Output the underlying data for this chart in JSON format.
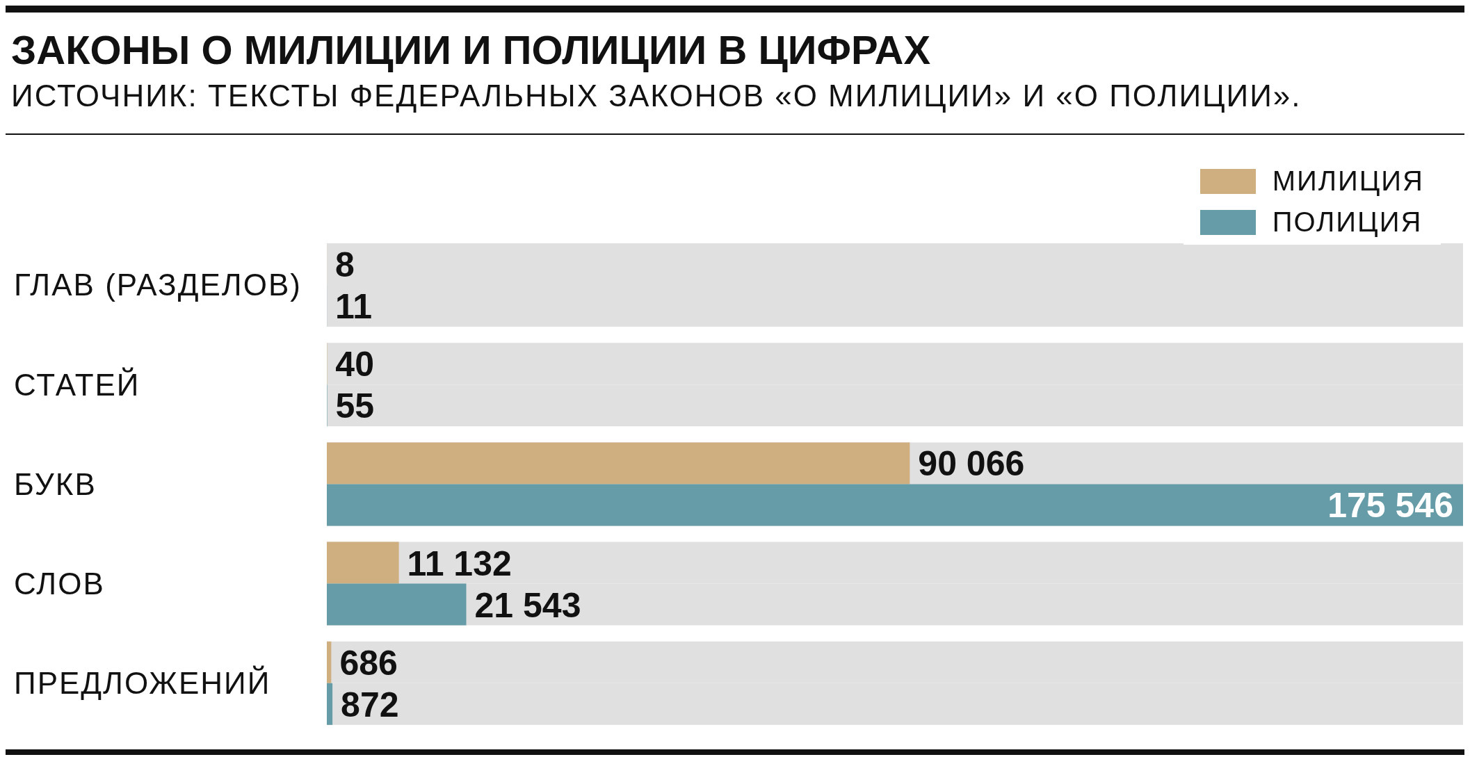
{
  "chart_data": {
    "type": "bar",
    "orientation": "horizontal",
    "title": "ЗАКОНЫ О МИЛИЦИИ И ПОЛИЦИИ В ЦИФРАХ",
    "subtitle": "ИСТОЧНИК: ТЕКСТЫ ФЕДЕРАЛЬНЫХ ЗАКОНОВ «О МИЛИЦИИ» И «О ПОЛИЦИИ».",
    "categories": [
      "ГЛАВ (РАЗДЕЛОВ)",
      "СТАТЕЙ",
      "БУКВ",
      "СЛОВ",
      "ПРЕДЛОЖЕНИЙ"
    ],
    "series": [
      {
        "name": "МИЛИЦИЯ",
        "color": "#cfae80",
        "values": [
          8,
          40,
          90066,
          11132,
          686
        ]
      },
      {
        "name": "ПОЛИЦИЯ",
        "color": "#659ca8",
        "values": [
          11,
          55,
          175546,
          21543,
          872
        ]
      }
    ],
    "data_labels": true,
    "legend": "top right",
    "grid": false
  }
}
